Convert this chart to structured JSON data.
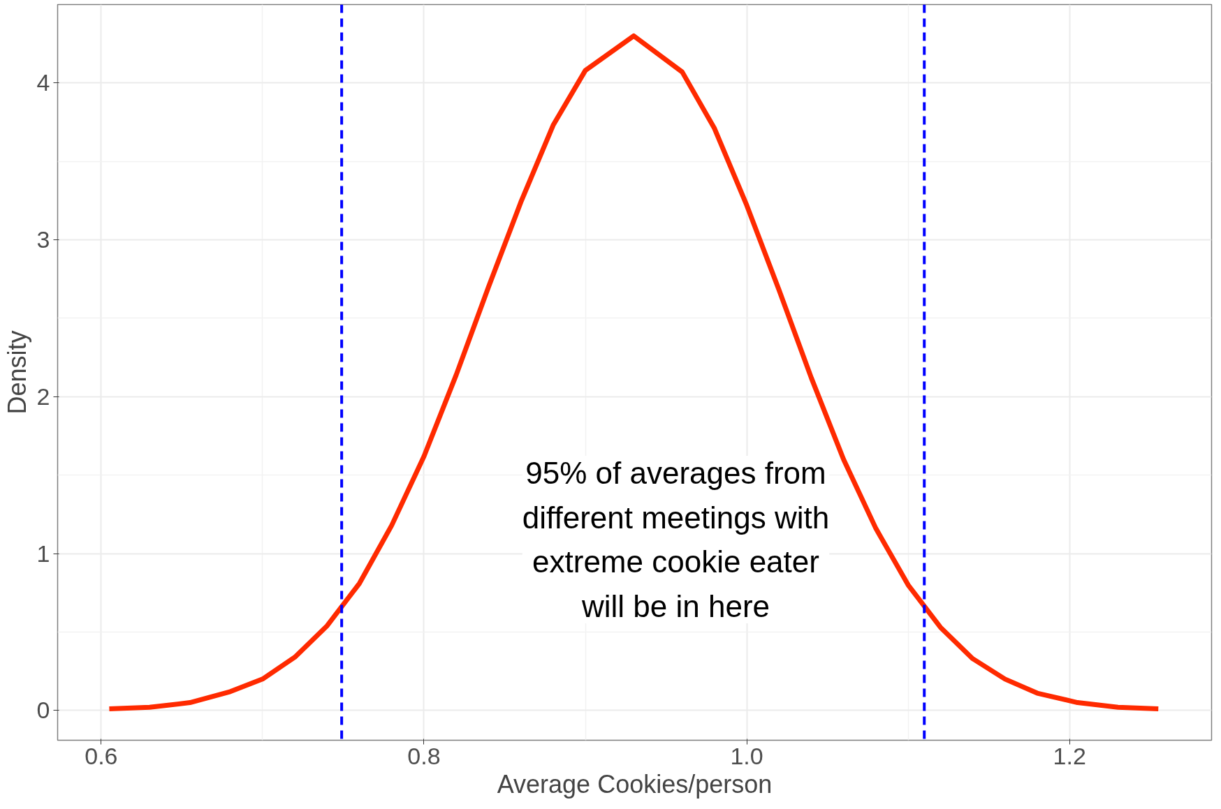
{
  "chart_data": {
    "type": "line",
    "xlabel": "Average Cookies/person",
    "ylabel": "Density",
    "x": [
      0.605,
      0.63,
      0.655,
      0.68,
      0.7,
      0.72,
      0.74,
      0.76,
      0.78,
      0.8,
      0.82,
      0.84,
      0.86,
      0.88,
      0.9,
      0.93,
      0.96,
      0.98,
      1.0,
      1.02,
      1.04,
      1.06,
      1.08,
      1.1,
      1.12,
      1.14,
      1.16,
      1.18,
      1.205,
      1.23,
      1.255
    ],
    "series": [
      {
        "color": "#ff2a00",
        "values": [
          0.01,
          0.02,
          0.05,
          0.12,
          0.2,
          0.34,
          0.54,
          0.81,
          1.18,
          1.62,
          2.14,
          2.7,
          3.24,
          3.73,
          4.08,
          4.3,
          4.07,
          3.71,
          3.22,
          2.68,
          2.12,
          1.6,
          1.16,
          0.8,
          0.53,
          0.33,
          0.2,
          0.11,
          0.05,
          0.02,
          0.01
        ]
      }
    ],
    "xlim": [
      0.573,
      1.288
    ],
    "ylim": [
      -0.19,
      4.5
    ],
    "xticks": [
      {
        "value": 0.6,
        "label": "0.6"
      },
      {
        "value": 0.8,
        "label": "0.8"
      },
      {
        "value": 1.0,
        "label": "1.0"
      },
      {
        "value": 1.2,
        "label": "1.2"
      }
    ],
    "yticks": [
      0,
      1,
      2,
      3,
      4
    ],
    "ref_lines": [
      {
        "axis": "x",
        "value": 0.749,
        "color": "#0000ff",
        "line_style": "dashed"
      },
      {
        "axis": "x",
        "value": 1.11,
        "color": "#0000ff",
        "line_style": "dashed"
      }
    ],
    "annotations": [
      "95% of averages from\ndifferent meetings with\nextreme cookie eater\nwill be in here"
    ],
    "grid": true,
    "marker": "none",
    "line_style": "solid"
  }
}
